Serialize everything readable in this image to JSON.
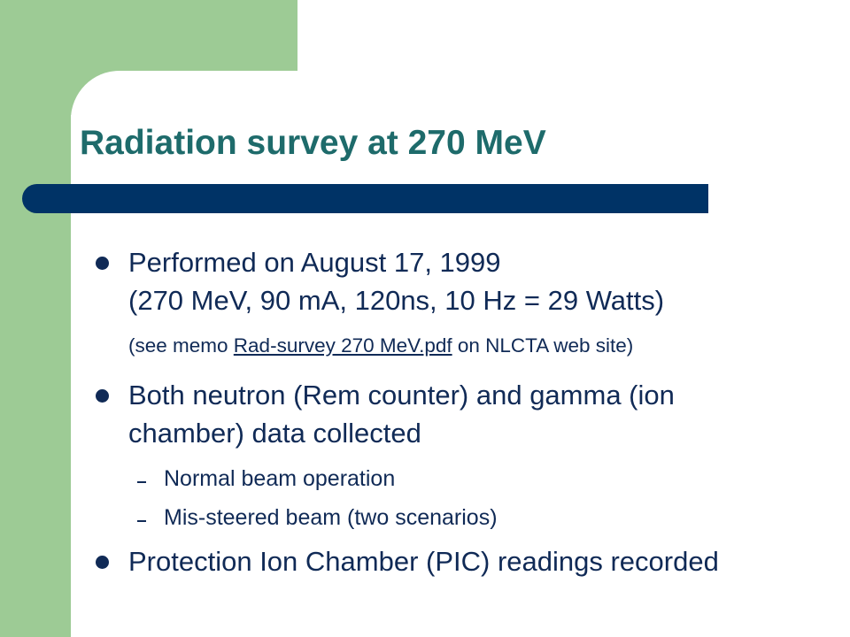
{
  "title": "Radiation survey at 270 MeV",
  "bullets": [
    {
      "lines": [
        "Performed on August 17, 1999",
        "(270 MeV, 90 mA, 120ns, 10 Hz = 29 Watts)"
      ],
      "note": {
        "prefix": "(see memo ",
        "link": "Rad-survey 270 MeV.pdf",
        "suffix": " on NLCTA web site)"
      }
    },
    {
      "lines": [
        "Both neutron (Rem counter) and gamma (ion",
        "chamber) data collected"
      ],
      "subitems": [
        "Normal beam operation",
        "Mis-steered beam (two scenarios)"
      ]
    },
    {
      "lines": [
        "Protection Ion Chamber (PIC) readings recorded"
      ]
    }
  ]
}
